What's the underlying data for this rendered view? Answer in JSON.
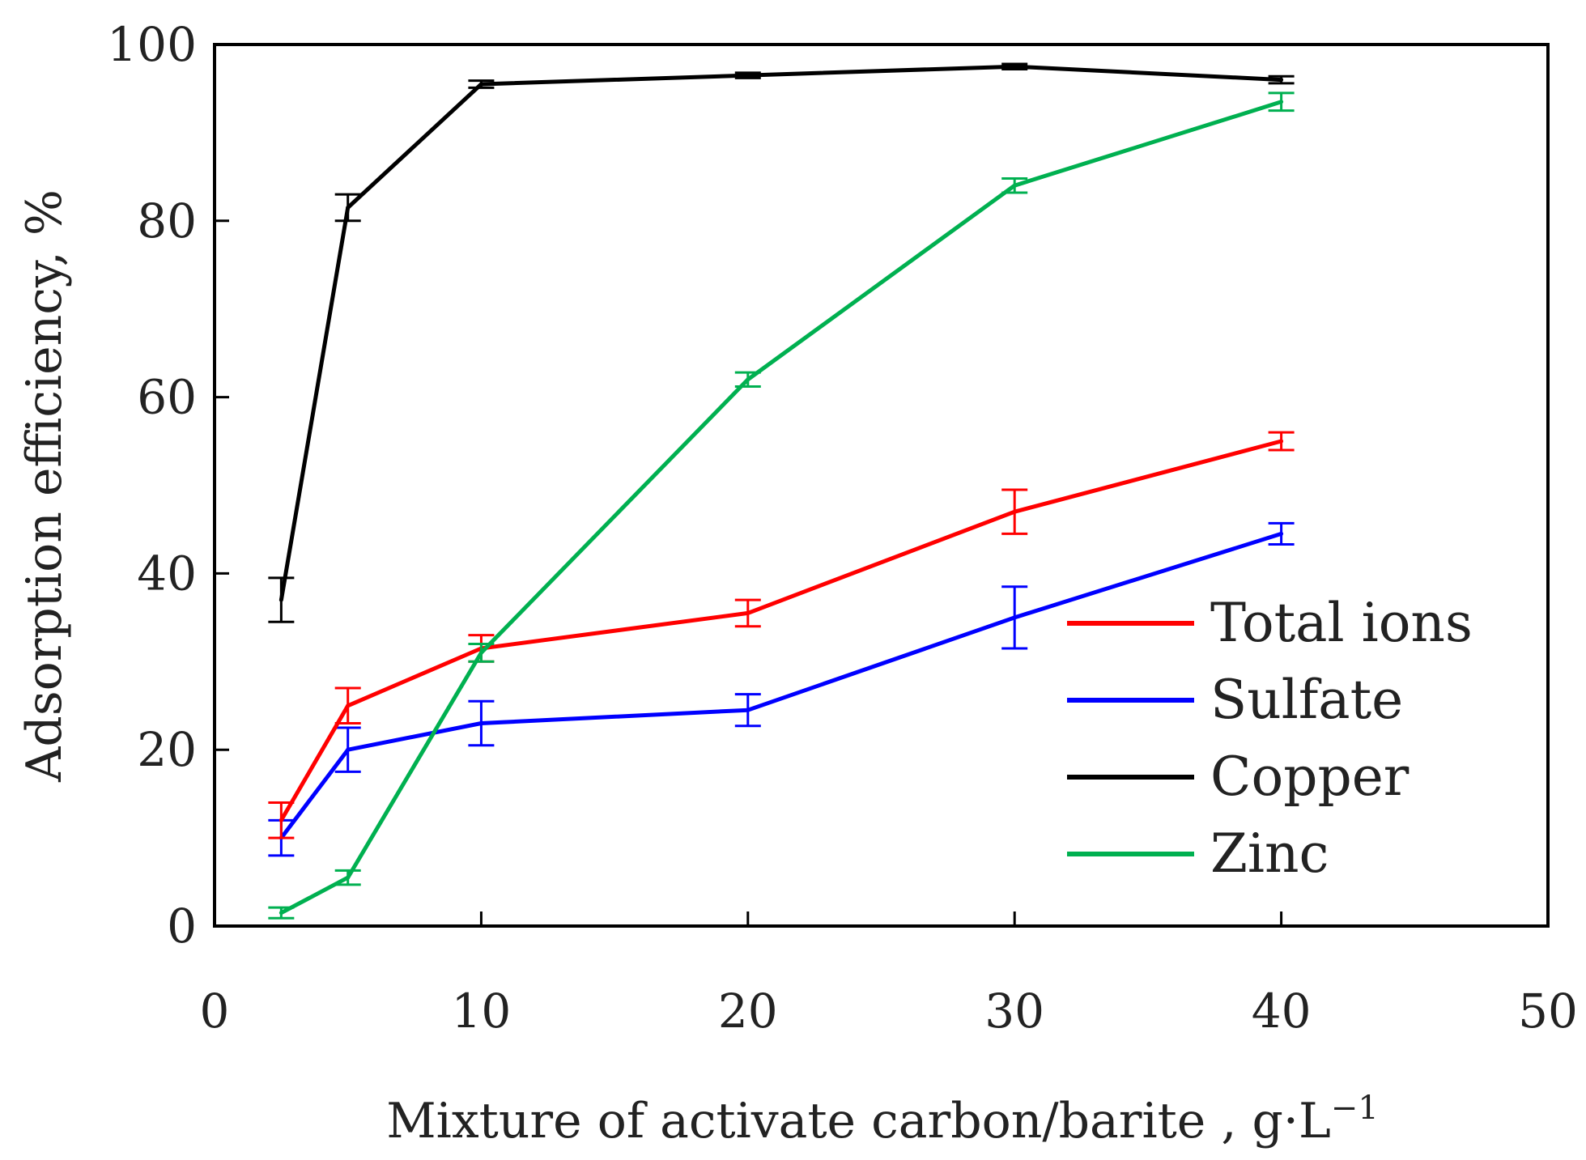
{
  "chart_data": {
    "type": "line",
    "title": "",
    "xlabel": "Mixture of activate carbon/barite , g·L",
    "xlabel_superscript": "−1",
    "ylabel": "Adsorption efficiency, %",
    "xlim": [
      0,
      50
    ],
    "ylim": [
      0,
      100
    ],
    "xticks": [
      0,
      10,
      20,
      30,
      40,
      50
    ],
    "yticks": [
      0,
      20,
      40,
      60,
      80,
      100
    ],
    "grid": false,
    "legend_position": "right",
    "x": [
      2.5,
      5,
      10,
      20,
      30,
      40
    ],
    "series": [
      {
        "name": "Total ions",
        "color": "#ff0000",
        "values": [
          12,
          25,
          31.5,
          35.5,
          47,
          55
        ],
        "errors": [
          2,
          2,
          1.5,
          1.5,
          2.5,
          1
        ]
      },
      {
        "name": "Sulfate",
        "color": "#0000ff",
        "values": [
          10,
          20,
          23,
          24.5,
          35,
          44.5
        ],
        "errors": [
          2,
          2.5,
          2.5,
          1.8,
          3.5,
          1.2
        ]
      },
      {
        "name": "Copper",
        "color": "#000000",
        "values": [
          37,
          81.5,
          95.5,
          96.5,
          97.5,
          96
        ],
        "errors": [
          2.5,
          1.5,
          0.4,
          0.3,
          0.3,
          0.4
        ]
      },
      {
        "name": "Zinc",
        "color": "#00b050",
        "values": [
          1.5,
          5.5,
          31,
          62,
          84,
          93.5
        ],
        "errors": [
          0.6,
          0.8,
          1,
          0.8,
          0.8,
          1
        ]
      }
    ]
  }
}
